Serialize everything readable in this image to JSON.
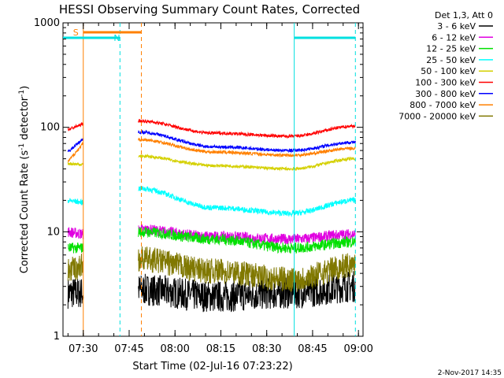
{
  "chart_data": {
    "type": "line",
    "title": "HESSI Observing Summary Count Rates, Corrected",
    "xlabel": "Start Time (02-Jul-16 07:23:22)",
    "ylabel": "Corrected Count Rate (s",
    "ylabel_sup1": "-1",
    "ylabel_mid": " detector",
    "ylabel_sup2": "-1",
    "ylabel_end": ")",
    "y_scale": "log",
    "ylim": [
      1,
      1000
    ],
    "xlim": [
      "07:23:22",
      "09:01:30"
    ],
    "y_ticks": [
      "1",
      "10",
      "100",
      "1000"
    ],
    "x_ticks": [
      "07:30",
      "07:45",
      "08:00",
      "08:15",
      "08:30",
      "08:45",
      "09:00"
    ],
    "legend_title": "Det 1,3, Att 0",
    "legend_position": "right",
    "data_gap": [
      "07:30",
      "07:48"
    ],
    "series": [
      {
        "name": "3 - 6 keV",
        "color": "#000000",
        "level": [
          2.6,
          2.6,
          2.8,
          2.4,
          2.6,
          3.0
        ]
      },
      {
        "name": "6 - 12 keV",
        "color": "#e000e0",
        "level": [
          10,
          9.5,
          10.5,
          9,
          8.5,
          9.5
        ]
      },
      {
        "name": "12 - 25 keV",
        "color": "#00e000",
        "level": [
          7,
          7,
          10,
          8.5,
          7,
          8
        ]
      },
      {
        "name": "25 - 50 keV",
        "color": "#00ffff",
        "level": [
          20,
          19,
          26,
          17,
          15,
          20
        ]
      },
      {
        "name": "50 - 100 keV",
        "color": "#d4d000",
        "level": [
          45,
          44,
          53,
          43,
          40,
          50
        ]
      },
      {
        "name": "100 - 300 keV",
        "color": "#ff0000",
        "level": [
          95,
          108,
          115,
          88,
          82,
          103
        ]
      },
      {
        "name": "300 - 800 keV",
        "color": "#0000ff",
        "level": [
          58,
          78,
          90,
          65,
          60,
          72
        ]
      },
      {
        "name": "800 - 7000 keV",
        "color": "#ff8000",
        "level": [
          47,
          70,
          76,
          58,
          54,
          63
        ]
      },
      {
        "name": "7000 - 20000 keV",
        "color": "#807800",
        "level": [
          4.2,
          4.8,
          5.5,
          4.2,
          3.5,
          4.8
        ]
      }
    ],
    "flags": [
      {
        "label": "S",
        "color": "#ff8000",
        "from": "07:30",
        "to": "07:49"
      },
      {
        "label": "N",
        "color": "#00e0e0",
        "from": "07:23:22",
        "to": "07:42"
      },
      {
        "label": "",
        "color": "#00e0e0",
        "from": "08:39",
        "to": "08:59"
      }
    ],
    "markers": [
      {
        "time": "07:30",
        "color": "#ff8000",
        "style": "solid"
      },
      {
        "time": "07:42",
        "color": "#00e0e0",
        "style": "dashed"
      },
      {
        "time": "07:49",
        "color": "#ff8000",
        "style": "dashed"
      },
      {
        "time": "08:39",
        "color": "#00e0e0",
        "style": "solid"
      },
      {
        "time": "08:59",
        "color": "#00e0e0",
        "style": "dashed"
      }
    ]
  },
  "footer": {
    "date": "2-Nov-2017 14:35"
  }
}
